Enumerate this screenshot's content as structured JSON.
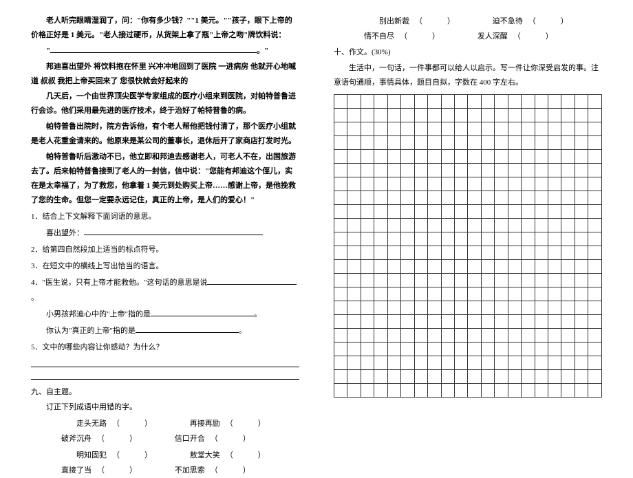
{
  "leftCol": {
    "story": {
      "p1": "老人听完眼睛湿润了，问：\"你有多少钱？\"\"1 美元。\"\"孩子，眼下上帝的价格正好是 1 美元。\"老人接过硬币，从货架上拿了瓶\"上帝之吻\"牌饮料说：",
      "p2_prefix": "\"",
      "p2_suffix": "。\"",
      "p3": "邦迪喜出望外  将饮料抱在怀里  兴冲冲地回到了医院  一进病房  他就开心地喊道  叔叔 我把上帝买回来了  您很快就会好起来的",
      "p4": "几天后，一个由世界顶尖医学专家组成的医疗小组来到医院，对帕特普鲁进行会诊。他们采用最先进的医疗技术，终于治好了帕特普鲁的病。",
      "p5": "帕特普鲁出院时，院方告诉他，有个老人帮他把钱付清了，那个医疗小组就是老人花重金请来的。他原来是某公司的董事长，退休后开了家商店打发时光。",
      "p6": "帕特普鲁听后激动不已，他立即和邦迪去感谢老人，可老人不在，出国旅游去了。后来帕特普鲁接到了老人的一封信，信中说：\"您能有邦迪这个侄儿，实在是太幸福了，为了救您，他拿着 1 美元到处购买上帝……感谢上帝，是他挽救了您的生命。但您一定要永远记住，真正的上帝，是人们的爱心！\""
    },
    "questions": {
      "q1": "1．结合上下文解释下面词语的意思。",
      "q1a": "喜出望外：",
      "q2": "2．给第四自然段加上适当的标点符号。",
      "q3": "3．在短文中的横线上写出恰当的语言。",
      "q4": "4．\"医生说，只有上帝才能救他。\"这句话的意思是说",
      "q4a": "小男孩邦迪心中的\"上帝\"指的是",
      "q4b": "你认为\"真正的上帝\"指的是",
      "q5": "5．文中的哪些内容让你感动？为什么？"
    },
    "section9": {
      "title": "九、自主题。",
      "sub": "订正下列成语中用错的字。",
      "row1": {
        "a": "走头无路",
        "b": "再接再励",
        "c": "破斧沉舟",
        "d": "信口开合"
      },
      "row2": {
        "a": "明知固犯",
        "b": "敖堂大笑",
        "c": "直接了当",
        "d": "不加思索"
      }
    }
  },
  "rightCol": {
    "idiomRow3": {
      "a": "别出新裁",
      "b": "迫不急待",
      "c": "情不自尽",
      "d": "发人深醒"
    },
    "section10": {
      "title": "十、作文。(30%)",
      "prompt": "生活中，一句话，一件事都可以给人以启示。写一件让你深受启发的事。注意语句通顺，事情具体，题目自拟，字数在 400 字左右。"
    },
    "gridRows": 22,
    "gridCols": 20
  },
  "style": {
    "bgColor": "#ffffff",
    "textColor": "#000000",
    "fontSize": 11,
    "gridBorderColor": "#333333"
  }
}
